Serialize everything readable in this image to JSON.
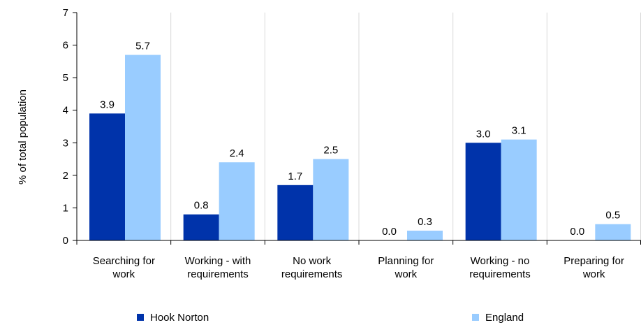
{
  "chart_data": {
    "type": "bar",
    "title": "",
    "xlabel": "",
    "ylabel": "% of total population",
    "ylim": [
      0,
      7
    ],
    "yticks": [
      0,
      1,
      2,
      3,
      4,
      5,
      6,
      7
    ],
    "grid": "vertical separators between categories",
    "legend_position": "bottom",
    "categories": [
      [
        "Searching for",
        "work"
      ],
      [
        "Working - with",
        "requirements"
      ],
      [
        "No work",
        "requirements"
      ],
      [
        "Planning for",
        "work"
      ],
      [
        "Working - no",
        "requirements"
      ],
      [
        "Preparing for",
        "work"
      ]
    ],
    "series": [
      {
        "name": "Hook Norton",
        "color": "#0033aa",
        "values": [
          3.9,
          0.8,
          1.7,
          0.0,
          3.0,
          0.0
        ],
        "labels": [
          "3.9",
          "0.8",
          "1.7",
          "0.0",
          "3.0",
          "0.0"
        ]
      },
      {
        "name": "England",
        "color": "#99ccff",
        "values": [
          5.7,
          2.4,
          2.5,
          0.3,
          3.1,
          0.5
        ],
        "labels": [
          "5.7",
          "2.4",
          "2.5",
          "0.3",
          "3.1",
          "0.5"
        ]
      }
    ]
  }
}
